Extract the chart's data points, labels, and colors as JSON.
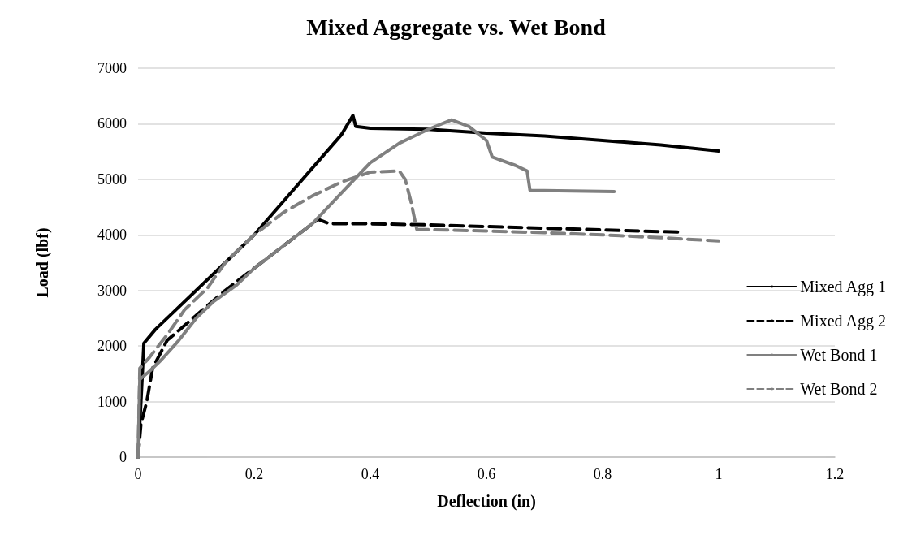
{
  "chart_data": {
    "type": "line",
    "title": "Mixed Aggregate vs. Wet Bond",
    "xlabel": "Deflection (in)",
    "ylabel": "Load (lbf)",
    "xlim": [
      0,
      1.2
    ],
    "xticks": [
      0,
      0.2,
      0.4,
      0.6,
      0.8,
      1,
      1.2
    ],
    "ylim": [
      0,
      7000
    ],
    "yticks": [
      0,
      1000,
      2000,
      3000,
      4000,
      5000,
      6000,
      7000
    ],
    "grid": "y",
    "legend": "right",
    "marker": "none",
    "series": [
      {
        "name": "Mixed Agg 1",
        "color": "#000000",
        "line_style": "solid",
        "x": [
          0,
          0.005,
          0.01,
          0.03,
          0.06,
          0.1,
          0.15,
          0.2,
          0.25,
          0.3,
          0.35,
          0.37,
          0.375,
          0.4,
          0.5,
          0.6,
          0.7,
          0.8,
          0.9,
          1.0
        ],
        "values": [
          0,
          1000,
          2050,
          2300,
          2600,
          3000,
          3500,
          4000,
          4600,
          5200,
          5800,
          6150,
          5950,
          5920,
          5900,
          5830,
          5780,
          5700,
          5620,
          5510
        ]
      },
      {
        "name": "Mixed Agg 2",
        "color": "#000000",
        "line_style": "dashed",
        "x": [
          0,
          0.005,
          0.015,
          0.025,
          0.05,
          0.1,
          0.15,
          0.2,
          0.25,
          0.3,
          0.31,
          0.33,
          0.4,
          0.5,
          0.6,
          0.7,
          0.8,
          0.93
        ],
        "values": [
          0,
          600,
          1000,
          1600,
          2100,
          2550,
          3000,
          3400,
          3800,
          4200,
          4280,
          4200,
          4200,
          4180,
          4150,
          4120,
          4090,
          4050
        ]
      },
      {
        "name": "Wet Bond 1",
        "color": "#808080",
        "line_style": "solid",
        "x": [
          0,
          0.003,
          0.02,
          0.04,
          0.07,
          0.1,
          0.13,
          0.17,
          0.2,
          0.25,
          0.3,
          0.35,
          0.4,
          0.45,
          0.5,
          0.54,
          0.57,
          0.6,
          0.61,
          0.65,
          0.67,
          0.675,
          0.82
        ],
        "values": [
          0,
          1400,
          1550,
          1750,
          2100,
          2500,
          2800,
          3100,
          3400,
          3800,
          4200,
          4750,
          5300,
          5650,
          5900,
          6070,
          5950,
          5700,
          5400,
          5250,
          5150,
          4800,
          4780
        ]
      },
      {
        "name": "Wet Bond 2",
        "color": "#808080",
        "line_style": "dashed",
        "x": [
          0,
          0.003,
          0.02,
          0.05,
          0.08,
          0.12,
          0.15,
          0.2,
          0.25,
          0.3,
          0.35,
          0.4,
          0.45,
          0.46,
          0.47,
          0.48,
          0.6,
          0.7,
          0.8,
          0.9,
          1.0
        ],
        "values": [
          0,
          1600,
          1800,
          2200,
          2650,
          3050,
          3500,
          4000,
          4400,
          4700,
          4950,
          5130,
          5150,
          5000,
          4600,
          4100,
          4070,
          4040,
          4000,
          3950,
          3890
        ]
      }
    ]
  }
}
